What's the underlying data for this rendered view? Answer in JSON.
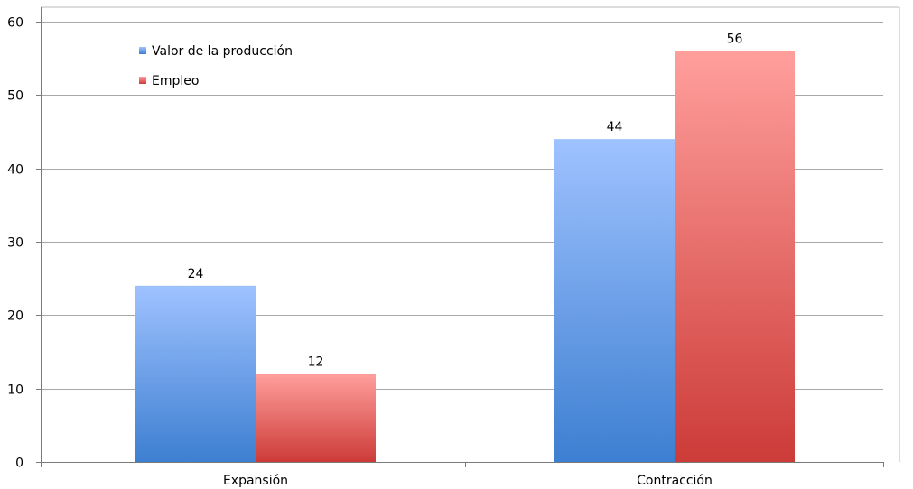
{
  "chart_data": {
    "type": "bar",
    "categories": [
      "Expansión",
      "Contracción"
    ],
    "series": [
      {
        "name": "Valor de la producción",
        "values": [
          24,
          44
        ],
        "color_top": "#9fc2ff",
        "color_bottom": "#3d7fd1"
      },
      {
        "name": "Empleo",
        "values": [
          12,
          56
        ],
        "color_top": "#ff9f9c",
        "color_bottom": "#cc3b38"
      }
    ],
    "ylim": [
      0,
      60
    ],
    "yticks": [
      0,
      10,
      20,
      30,
      40,
      50,
      60
    ],
    "grid": true,
    "legend_position": "top-left",
    "title": "",
    "xlabel": "",
    "ylabel": ""
  }
}
